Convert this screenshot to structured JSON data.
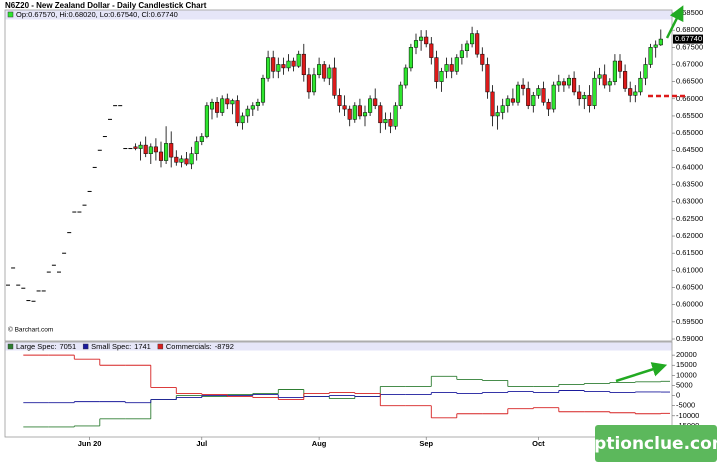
{
  "chart_data": [
    {
      "type": "candlestick",
      "title": "N6Z20 - New Zealand Dollar - Daily Candlestick Chart",
      "legend_text": "Op:0.67570, Hi:0.68020, Lo:0.67540, Cl:0.67740",
      "source": "© Barchart.com",
      "categories": [
        null,
        null,
        null,
        null,
        null,
        null,
        null,
        null,
        null,
        null,
        null,
        null,
        null,
        null,
        null,
        null,
        "Jun 20",
        null,
        null,
        null,
        null,
        null,
        null,
        null,
        null,
        null,
        null,
        null,
        null,
        null,
        null,
        null,
        null,
        null,
        null,
        null,
        null,
        null,
        "Jul",
        null,
        null,
        null,
        null,
        null,
        null,
        null,
        null,
        null,
        null,
        null,
        null,
        null,
        null,
        null,
        null,
        null,
        null,
        null,
        null,
        null,
        null,
        "Aug",
        null,
        null,
        null,
        null,
        null,
        null,
        null,
        null,
        null,
        null,
        null,
        null,
        null,
        null,
        null,
        null,
        null,
        null,
        null,
        null,
        "Sep",
        null,
        null,
        null,
        null,
        null,
        null,
        null,
        null,
        null,
        null,
        null,
        null,
        null,
        null,
        null,
        null,
        null,
        null,
        null,
        null,
        null,
        "Oct",
        null,
        null,
        null,
        null,
        null,
        null,
        null,
        null,
        null,
        null,
        null,
        null,
        null,
        null,
        null,
        null,
        null,
        null,
        null,
        null,
        null,
        null,
        null,
        null
      ],
      "open": [
        0.6057,
        0.6107,
        0.6057,
        0.6048,
        0.6012,
        0.601,
        0.604,
        0.604,
        0.6095,
        0.6115,
        0.6095,
        0.615,
        0.621,
        0.627,
        0.627,
        0.629,
        0.633,
        0.64,
        0.645,
        0.649,
        0.654,
        0.658,
        0.658,
        0.6455,
        0.6455,
        0.646,
        0.6455,
        0.6465,
        0.644,
        0.646,
        0.6445,
        0.642,
        0.647,
        0.643,
        0.6415,
        0.6425,
        0.641,
        0.644,
        0.6475,
        0.649,
        0.657,
        0.659,
        0.656,
        0.66,
        0.6585,
        0.6595,
        0.653,
        0.655,
        0.657,
        0.658,
        0.659,
        0.666,
        0.672,
        0.668,
        0.67,
        0.669,
        0.671,
        0.6695,
        0.673,
        0.667,
        0.662,
        0.667,
        0.67,
        0.666,
        0.669,
        0.661,
        0.658,
        0.657,
        0.654,
        0.658,
        0.655,
        0.656,
        0.66,
        0.658,
        0.653,
        0.654,
        0.652,
        0.658,
        0.664,
        0.669,
        0.675,
        0.677,
        0.678,
        0.676,
        0.672,
        0.665,
        0.668,
        0.67,
        0.668,
        0.672,
        0.674,
        0.676,
        0.679,
        0.673,
        0.67,
        0.662,
        0.655,
        0.656,
        0.658,
        0.66,
        0.659,
        0.664,
        0.663,
        0.658,
        0.661,
        0.663,
        0.659,
        0.657,
        0.664,
        0.665,
        0.664,
        0.666,
        0.662,
        0.66,
        0.661,
        0.658,
        0.666,
        0.667,
        0.664,
        0.665,
        0.671,
        0.668,
        0.663,
        0.661,
        0.662,
        0.666,
        0.67,
        0.675,
        0.6757
      ],
      "high": [
        0.6057,
        0.6107,
        0.6057,
        0.6048,
        0.6012,
        0.601,
        0.604,
        0.604,
        0.6095,
        0.6115,
        0.6095,
        0.615,
        0.621,
        0.627,
        0.627,
        0.629,
        0.633,
        0.64,
        0.645,
        0.649,
        0.654,
        0.658,
        0.658,
        0.6455,
        0.6455,
        0.647,
        0.6475,
        0.649,
        0.647,
        0.6485,
        0.6475,
        0.652,
        0.6505,
        0.645,
        0.6435,
        0.6445,
        0.646,
        0.649,
        0.65,
        0.659,
        0.66,
        0.6605,
        0.661,
        0.6615,
        0.66,
        0.661,
        0.656,
        0.658,
        0.659,
        0.66,
        0.667,
        0.674,
        0.674,
        0.672,
        0.672,
        0.673,
        0.672,
        0.674,
        0.676,
        0.669,
        0.669,
        0.672,
        0.671,
        0.67,
        0.672,
        0.663,
        0.661,
        0.658,
        0.659,
        0.66,
        0.658,
        0.661,
        0.663,
        0.659,
        0.656,
        0.656,
        0.659,
        0.665,
        0.67,
        0.676,
        0.679,
        0.68,
        0.68,
        0.678,
        0.674,
        0.669,
        0.672,
        0.672,
        0.673,
        0.676,
        0.677,
        0.681,
        0.68,
        0.675,
        0.672,
        0.664,
        0.658,
        0.66,
        0.661,
        0.663,
        0.665,
        0.666,
        0.665,
        0.662,
        0.664,
        0.665,
        0.66,
        0.665,
        0.667,
        0.666,
        0.667,
        0.668,
        0.664,
        0.662,
        0.664,
        0.668,
        0.669,
        0.67,
        0.666,
        0.673,
        0.673,
        0.67,
        0.665,
        0.664,
        0.668,
        0.672,
        0.676,
        0.677,
        0.6802
      ],
      "low": [
        0.6057,
        0.6107,
        0.6057,
        0.6048,
        0.6012,
        0.601,
        0.604,
        0.604,
        0.6095,
        0.6115,
        0.6095,
        0.615,
        0.621,
        0.627,
        0.627,
        0.629,
        0.633,
        0.64,
        0.645,
        0.649,
        0.654,
        0.658,
        0.658,
        0.6455,
        0.6455,
        0.645,
        0.642,
        0.643,
        0.641,
        0.642,
        0.64,
        0.641,
        0.64,
        0.6405,
        0.64,
        0.6405,
        0.6395,
        0.642,
        0.6465,
        0.6485,
        0.654,
        0.6545,
        0.655,
        0.657,
        0.6555,
        0.652,
        0.651,
        0.653,
        0.655,
        0.6565,
        0.658,
        0.665,
        0.666,
        0.666,
        0.667,
        0.668,
        0.668,
        0.669,
        0.665,
        0.66,
        0.661,
        0.666,
        0.665,
        0.664,
        0.66,
        0.656,
        0.655,
        0.652,
        0.653,
        0.654,
        0.652,
        0.655,
        0.657,
        0.65,
        0.651,
        0.65,
        0.651,
        0.657,
        0.663,
        0.668,
        0.673,
        0.674,
        0.675,
        0.67,
        0.663,
        0.662,
        0.666,
        0.666,
        0.667,
        0.67,
        0.672,
        0.675,
        0.672,
        0.668,
        0.66,
        0.652,
        0.651,
        0.654,
        0.656,
        0.658,
        0.658,
        0.661,
        0.657,
        0.656,
        0.66,
        0.658,
        0.655,
        0.656,
        0.662,
        0.662,
        0.663,
        0.661,
        0.658,
        0.657,
        0.656,
        0.657,
        0.664,
        0.663,
        0.662,
        0.664,
        0.666,
        0.662,
        0.659,
        0.659,
        0.661,
        0.664,
        0.669,
        0.672,
        0.6754
      ],
      "close": [
        0.6057,
        0.6107,
        0.6057,
        0.6048,
        0.6012,
        0.601,
        0.604,
        0.604,
        0.6095,
        0.6115,
        0.6095,
        0.615,
        0.621,
        0.627,
        0.627,
        0.629,
        0.633,
        0.64,
        0.645,
        0.649,
        0.654,
        0.658,
        0.658,
        0.6455,
        0.6455,
        0.6455,
        0.6465,
        0.644,
        0.646,
        0.6445,
        0.642,
        0.647,
        0.643,
        0.6415,
        0.6425,
        0.641,
        0.644,
        0.6475,
        0.649,
        0.658,
        0.659,
        0.656,
        0.66,
        0.6585,
        0.6595,
        0.653,
        0.655,
        0.657,
        0.658,
        0.659,
        0.666,
        0.672,
        0.668,
        0.67,
        0.669,
        0.671,
        0.6695,
        0.673,
        0.667,
        0.662,
        0.667,
        0.67,
        0.666,
        0.669,
        0.661,
        0.658,
        0.657,
        0.654,
        0.658,
        0.655,
        0.656,
        0.66,
        0.658,
        0.653,
        0.654,
        0.652,
        0.658,
        0.664,
        0.669,
        0.675,
        0.677,
        0.678,
        0.676,
        0.672,
        0.665,
        0.668,
        0.67,
        0.668,
        0.672,
        0.674,
        0.676,
        0.679,
        0.673,
        0.67,
        0.662,
        0.655,
        0.656,
        0.658,
        0.66,
        0.659,
        0.664,
        0.663,
        0.658,
        0.661,
        0.663,
        0.659,
        0.657,
        0.664,
        0.665,
        0.664,
        0.666,
        0.662,
        0.66,
        0.661,
        0.658,
        0.666,
        0.667,
        0.664,
        0.665,
        0.671,
        0.668,
        0.663,
        0.661,
        0.662,
        0.666,
        0.67,
        0.675,
        0.6757,
        0.6774
      ],
      "up_color": "#2ee62e",
      "down_color": "#dd1a1a",
      "ylim": [
        0.59,
        0.685
      ],
      "yticks": [
        {
          "value": 0.685,
          "label": "0.68500"
        },
        {
          "value": 0.68,
          "label": "0.68000"
        },
        {
          "value": 0.675,
          "label": "0.67500"
        },
        {
          "value": 0.67,
          "label": "0.67000"
        },
        {
          "value": 0.665,
          "label": "0.66500"
        },
        {
          "value": 0.66,
          "label": "0.66000"
        },
        {
          "value": 0.655,
          "label": "0.65500"
        },
        {
          "value": 0.65,
          "label": "0.65000"
        },
        {
          "value": 0.645,
          "label": "0.64500"
        },
        {
          "value": 0.64,
          "label": "0.64000"
        },
        {
          "value": 0.635,
          "label": "0.63500"
        },
        {
          "value": 0.63,
          "label": "0.63000"
        },
        {
          "value": 0.625,
          "label": "0.62500"
        },
        {
          "value": 0.62,
          "label": "0.62000"
        },
        {
          "value": 0.615,
          "label": "0.61500"
        },
        {
          "value": 0.61,
          "label": "0.61000"
        },
        {
          "value": 0.605,
          "label": "0.60500"
        },
        {
          "value": 0.6,
          "label": "0.60000"
        },
        {
          "value": 0.595,
          "label": "0.59500"
        },
        {
          "value": 0.59,
          "label": "0.59000"
        }
      ],
      "last_price": {
        "value": 0.6774,
        "label": "0.67740"
      },
      "grid": false
    },
    {
      "type": "step",
      "categories": [
        null,
        null,
        null,
        null,
        null,
        null,
        null,
        null,
        null,
        null,
        null,
        null,
        null,
        null,
        null,
        null,
        null,
        null,
        null,
        null,
        null,
        null,
        null,
        null,
        null,
        null
      ],
      "series": [
        {
          "name": "Large Spec:",
          "color": "#2e7d32",
          "values": [
            -15500,
            -15500,
            -15000,
            -11500,
            -11500,
            -2000,
            0,
            -500,
            500,
            1000,
            3000,
            -500,
            -1500,
            -500,
            4500,
            4500,
            9500,
            8000,
            7500,
            4500,
            4500,
            5500,
            6000,
            6500,
            6800,
            7051
          ]
        },
        {
          "name": "Small Spec:",
          "color": "#1a1a9c",
          "values": [
            -3500,
            -3500,
            -3000,
            -3000,
            -3500,
            -2000,
            -1000,
            0,
            0,
            500,
            -1000,
            -500,
            0,
            -500,
            500,
            500,
            1500,
            1000,
            1500,
            2000,
            1500,
            2500,
            2000,
            1500,
            1800,
            1741
          ]
        },
        {
          "name": "Commercials:",
          "color": "#d62020",
          "values": [
            20000,
            20000,
            18000,
            15000,
            15000,
            4000,
            1000,
            500,
            -500,
            -1000,
            -2000,
            1000,
            1500,
            1000,
            -5000,
            -5000,
            -11000,
            -9000,
            -9000,
            -6500,
            -6000,
            -8000,
            -8000,
            -8500,
            -9000,
            -8792
          ]
        }
      ],
      "ylim": [
        -20000,
        26000
      ],
      "yticks": [
        20000,
        15000,
        10000,
        5000,
        0,
        -5000,
        -10000,
        -15000
      ],
      "grid": false
    },
    {
      "watermark": "optionclue.com"
    }
  ]
}
